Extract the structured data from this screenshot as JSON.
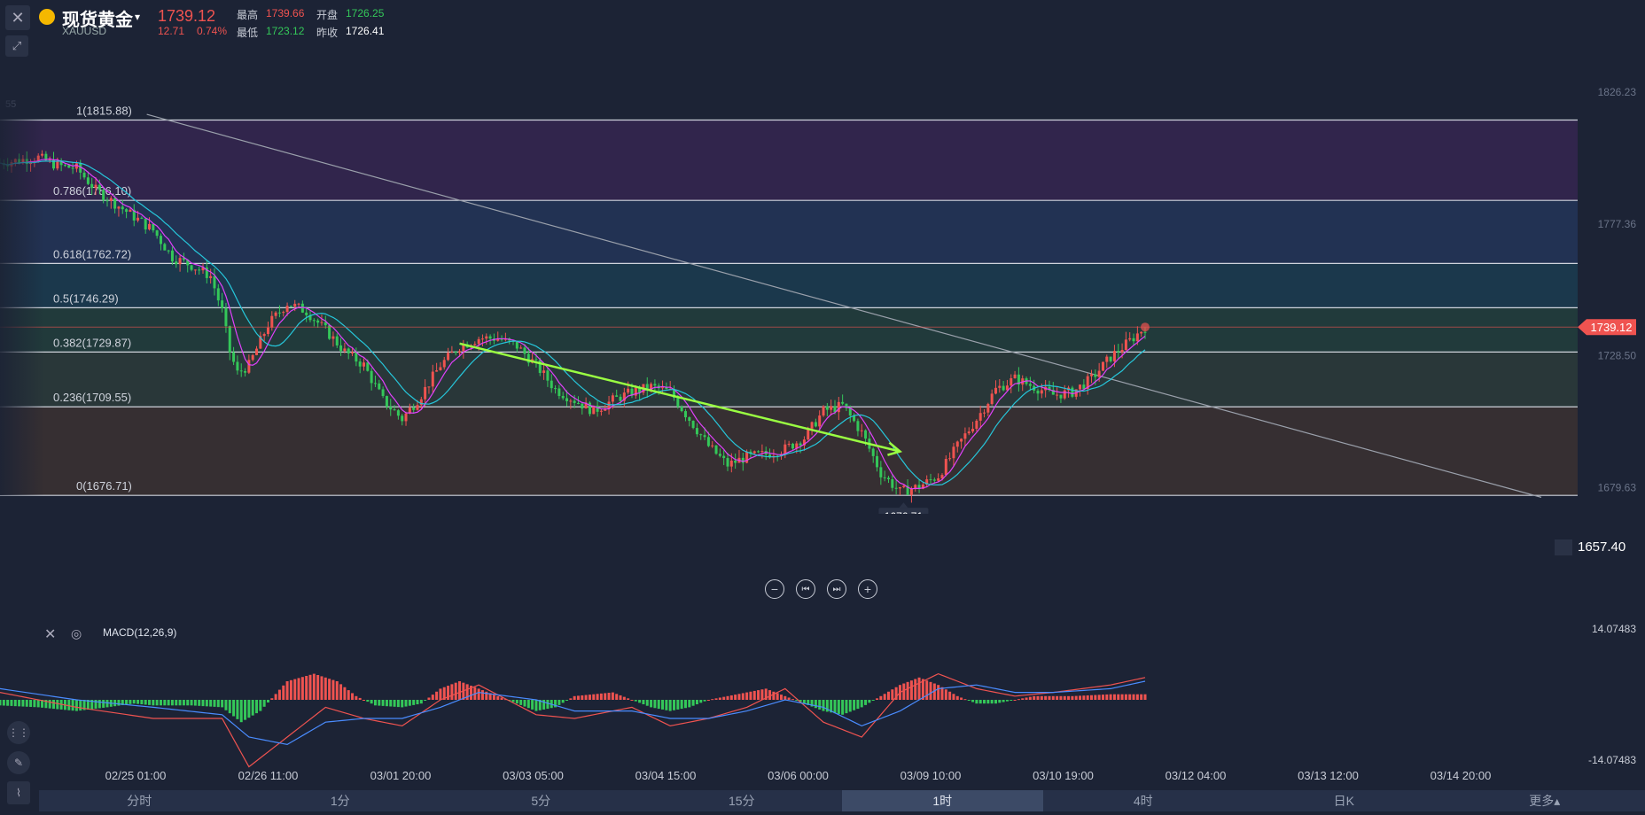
{
  "header": {
    "title": "现货黄金",
    "symbol": "XAUUSD",
    "price": "1739.12",
    "change": "12.71",
    "change_pct": "0.74%",
    "high_label": "最高",
    "high": "1739.66",
    "open_label": "开盘",
    "open": "1726.25",
    "low_label": "最低",
    "low": "1723.12",
    "prev_close_label": "昨收",
    "prev_close": "1726.41"
  },
  "colors": {
    "up": "#ef5350",
    "down": "#34c759",
    "ma1": "#e040fb",
    "ma2": "#26c6da",
    "trend": "#9aff42"
  },
  "chart_data": [
    {
      "type": "candlestick",
      "ylim": [
        1657.4,
        1826.23
      ],
      "right_axis_labels": [
        "1826.23",
        "1777.36",
        "1728.50",
        "1679.63"
      ],
      "last_price": "1739.12",
      "alert_price": "1657.40",
      "min_marker": "1676.71",
      "stub_label": "55",
      "x_ticks": [
        "02/25 01:00",
        "02/26 11:00",
        "03/01 20:00",
        "03/03 05:00",
        "03/04 15:00",
        "03/06 00:00",
        "03/09 10:00",
        "03/10 19:00",
        "03/12 04:00",
        "03/13 12:00",
        "03/14 20:00"
      ],
      "fib_levels": [
        {
          "label": "1(1815.88)",
          "value": 1815.88
        },
        {
          "label": "0.786(1786.10)",
          "value": 1786.1
        },
        {
          "label": "0.618(1762.72)",
          "value": 1762.72
        },
        {
          "label": "0.5(1746.29)",
          "value": 1746.29
        },
        {
          "label": "0.382(1729.87)",
          "value": 1729.87
        },
        {
          "label": "0.236(1709.55)",
          "value": 1709.55
        },
        {
          "label": "0(1676.71)",
          "value": 1676.71
        }
      ],
      "price_path": [
        [
          0,
          1800
        ],
        [
          5,
          1801
        ],
        [
          10,
          1802
        ],
        [
          15,
          1799
        ],
        [
          20,
          1798
        ],
        [
          25,
          1790
        ],
        [
          30,
          1785
        ],
        [
          35,
          1780
        ],
        [
          40,
          1775
        ],
        [
          45,
          1765
        ],
        [
          50,
          1762
        ],
        [
          55,
          1758
        ],
        [
          58,
          1745
        ],
        [
          60,
          1730
        ],
        [
          62,
          1722
        ],
        [
          65,
          1725
        ],
        [
          70,
          1740
        ],
        [
          75,
          1748
        ],
        [
          80,
          1745
        ],
        [
          85,
          1738
        ],
        [
          90,
          1730
        ],
        [
          95,
          1725
        ],
        [
          100,
          1712
        ],
        [
          105,
          1705
        ],
        [
          110,
          1714
        ],
        [
          115,
          1725
        ],
        [
          120,
          1732
        ],
        [
          125,
          1735
        ],
        [
          130,
          1735
        ],
        [
          135,
          1732
        ],
        [
          140,
          1725
        ],
        [
          145,
          1716
        ],
        [
          150,
          1712
        ],
        [
          155,
          1708
        ],
        [
          160,
          1712
        ],
        [
          165,
          1715
        ],
        [
          170,
          1717
        ],
        [
          175,
          1715
        ],
        [
          180,
          1705
        ],
        [
          185,
          1695
        ],
        [
          190,
          1688
        ],
        [
          195,
          1691
        ],
        [
          200,
          1692
        ],
        [
          205,
          1694
        ],
        [
          210,
          1698
        ],
        [
          215,
          1708
        ],
        [
          220,
          1710
        ],
        [
          225,
          1700
        ],
        [
          230,
          1685
        ],
        [
          235,
          1678
        ],
        [
          240,
          1680
        ],
        [
          245,
          1684
        ],
        [
          250,
          1695
        ],
        [
          255,
          1705
        ],
        [
          260,
          1716
        ],
        [
          265,
          1720
        ],
        [
          270,
          1717
        ],
        [
          275,
          1714
        ],
        [
          280,
          1715
        ],
        [
          285,
          1720
        ],
        [
          290,
          1728
        ],
        [
          295,
          1734
        ],
        [
          299,
          1739.12
        ]
      ],
      "trendline_green": [
        [
          120,
          1733
        ],
        [
          235,
          1693
        ]
      ],
      "trendline_gray": [
        [
          30,
          1818
        ],
        [
          355,
          1676
        ]
      ]
    },
    {
      "type": "macd",
      "title": "MACD(12,26,9)",
      "ylim": [
        -14.07483,
        14.07483
      ],
      "top_label": "14.07483",
      "bottom_label": "-14.07483",
      "x_ticks": [
        "02/25 01:00",
        "02/26 11:00",
        "03/01 20:00",
        "03/03 05:00",
        "03/04 15:00",
        "03/06 00:00",
        "03/09 10:00",
        "03/10 19:00",
        "03/12 04:00",
        "03/13 12:00",
        "03/14 20:00"
      ],
      "histogram": [
        [
          0,
          -1.5
        ],
        [
          10,
          -2
        ],
        [
          20,
          -3
        ],
        [
          28,
          -2
        ],
        [
          35,
          -1
        ],
        [
          40,
          -1.5
        ],
        [
          50,
          -1.5
        ],
        [
          58,
          -2
        ],
        [
          63,
          -6
        ],
        [
          68,
          -3
        ],
        [
          75,
          5
        ],
        [
          82,
          7
        ],
        [
          88,
          5
        ],
        [
          93,
          1
        ],
        [
          98,
          -1.5
        ],
        [
          105,
          -2
        ],
        [
          110,
          -1
        ],
        [
          115,
          3
        ],
        [
          120,
          5
        ],
        [
          125,
          3
        ],
        [
          130,
          1
        ],
        [
          135,
          -1
        ],
        [
          140,
          -3
        ],
        [
          145,
          -2
        ],
        [
          150,
          1
        ],
        [
          160,
          2
        ],
        [
          165,
          0
        ],
        [
          170,
          -2
        ],
        [
          175,
          -3
        ],
        [
          180,
          -2
        ],
        [
          185,
          0
        ],
        [
          190,
          1
        ],
        [
          195,
          2
        ],
        [
          200,
          3
        ],
        [
          205,
          1
        ],
        [
          210,
          -1
        ],
        [
          215,
          -3
        ],
        [
          220,
          -4
        ],
        [
          225,
          -2
        ],
        [
          230,
          1
        ],
        [
          235,
          4
        ],
        [
          240,
          6
        ],
        [
          245,
          4
        ],
        [
          250,
          1
        ],
        [
          255,
          -1
        ],
        [
          260,
          -1
        ],
        [
          265,
          0
        ],
        [
          270,
          1
        ],
        [
          280,
          1
        ],
        [
          290,
          1.5
        ],
        [
          299,
          1.5
        ]
      ],
      "line_dif": [
        [
          0,
          2
        ],
        [
          20,
          -2
        ],
        [
          40,
          -5
        ],
        [
          58,
          -5
        ],
        [
          65,
          -18
        ],
        [
          75,
          -10
        ],
        [
          85,
          -2
        ],
        [
          95,
          -5
        ],
        [
          105,
          -7
        ],
        [
          115,
          0
        ],
        [
          125,
          4
        ],
        [
          140,
          -4
        ],
        [
          150,
          -5
        ],
        [
          165,
          -2
        ],
        [
          175,
          -7
        ],
        [
          185,
          -5
        ],
        [
          195,
          -2
        ],
        [
          205,
          3
        ],
        [
          215,
          -6
        ],
        [
          225,
          -10
        ],
        [
          235,
          2
        ],
        [
          245,
          7
        ],
        [
          255,
          3
        ],
        [
          265,
          1
        ],
        [
          275,
          2
        ],
        [
          290,
          4
        ],
        [
          299,
          6
        ]
      ],
      "line_dea": [
        [
          0,
          3
        ],
        [
          20,
          0
        ],
        [
          40,
          -2
        ],
        [
          58,
          -4
        ],
        [
          65,
          -10
        ],
        [
          75,
          -12
        ],
        [
          85,
          -6
        ],
        [
          95,
          -5
        ],
        [
          105,
          -5
        ],
        [
          115,
          -2
        ],
        [
          125,
          2
        ],
        [
          140,
          0
        ],
        [
          150,
          -3
        ],
        [
          165,
          -3
        ],
        [
          175,
          -5
        ],
        [
          185,
          -5
        ],
        [
          195,
          -3
        ],
        [
          205,
          0
        ],
        [
          215,
          -2
        ],
        [
          225,
          -7
        ],
        [
          235,
          -3
        ],
        [
          245,
          3
        ],
        [
          255,
          4
        ],
        [
          265,
          2
        ],
        [
          275,
          2
        ],
        [
          290,
          3
        ],
        [
          299,
          5
        ]
      ]
    }
  ],
  "controls": {
    "zoom_out": "−",
    "prev": "⏮",
    "next": "⏭",
    "zoom_in": "+"
  },
  "timeframes": [
    {
      "label": "分时",
      "active": false
    },
    {
      "label": "1分",
      "active": false
    },
    {
      "label": "5分",
      "active": false
    },
    {
      "label": "15分",
      "active": false
    },
    {
      "label": "1时",
      "active": true
    },
    {
      "label": "4时",
      "active": false
    },
    {
      "label": "日K",
      "active": false
    },
    {
      "label": "更多▴",
      "active": false
    }
  ]
}
